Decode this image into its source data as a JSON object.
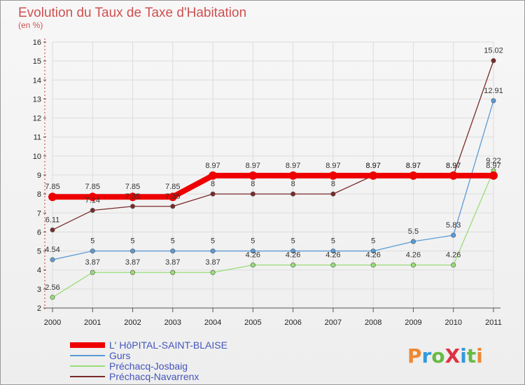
{
  "chart_data": {
    "type": "line",
    "title": "Evolution du Taux de Taxe d'Habitation",
    "subtitle": "(en %)",
    "categories": [
      "2000",
      "2001",
      "2002",
      "2003",
      "2004",
      "2005",
      "2006",
      "2007",
      "2008",
      "2009",
      "2010",
      "2011"
    ],
    "ylim": [
      2,
      16
    ],
    "yticks": [
      2,
      3,
      4,
      5,
      6,
      7,
      8,
      9,
      10,
      11,
      12,
      13,
      14,
      15,
      16
    ],
    "series": [
      {
        "name": "L' HôPITAL-SAINT-BLAISE",
        "color": "#ee0000",
        "values": [
          7.85,
          7.85,
          7.85,
          7.85,
          8.97,
          8.97,
          8.97,
          8.97,
          8.97,
          8.97,
          8.97,
          8.97
        ],
        "labels": [
          "7.85",
          "7.85",
          "7.85",
          "7.85",
          "8.97",
          "8.97",
          "8.97",
          "8.97",
          "8.97",
          "8.97",
          "8.97",
          "8.97"
        ]
      },
      {
        "name": "Gurs",
        "color": "#5b9bd5",
        "values": [
          4.54,
          5,
          5,
          5,
          5,
          5,
          5,
          5,
          5,
          5.5,
          5.83,
          12.91
        ],
        "labels": [
          "4.54",
          "5",
          "5",
          "5",
          "5",
          "5",
          "5",
          "5",
          "5",
          "5.5",
          "5.83",
          "12.91"
        ]
      },
      {
        "name": "Préchacq-Josbaig",
        "color": "#99dd77",
        "values": [
          2.56,
          3.87,
          3.87,
          3.87,
          3.87,
          4.26,
          4.26,
          4.26,
          4.26,
          4.26,
          4.26,
          9.22
        ],
        "labels": [
          "2.56",
          "3.87",
          "3.87",
          "3.87",
          "3.87",
          "4.26",
          "4.26",
          "4.26",
          "4.26",
          "4.26",
          "4.26",
          "9.22"
        ]
      },
      {
        "name": "Préchacq-Navarrenx",
        "color": "#7a2a2a",
        "values": [
          6.11,
          7.14,
          7.35,
          7.35,
          8,
          8,
          8,
          8,
          8.97,
          8.97,
          8.97,
          15.02
        ],
        "labels": [
          "6.11",
          "7.14",
          "7.35",
          "7.35",
          "8",
          "8",
          "8",
          "8",
          "8.97",
          "8.97",
          "8.97",
          "15.02"
        ]
      }
    ],
    "logo": "ProXiti"
  }
}
